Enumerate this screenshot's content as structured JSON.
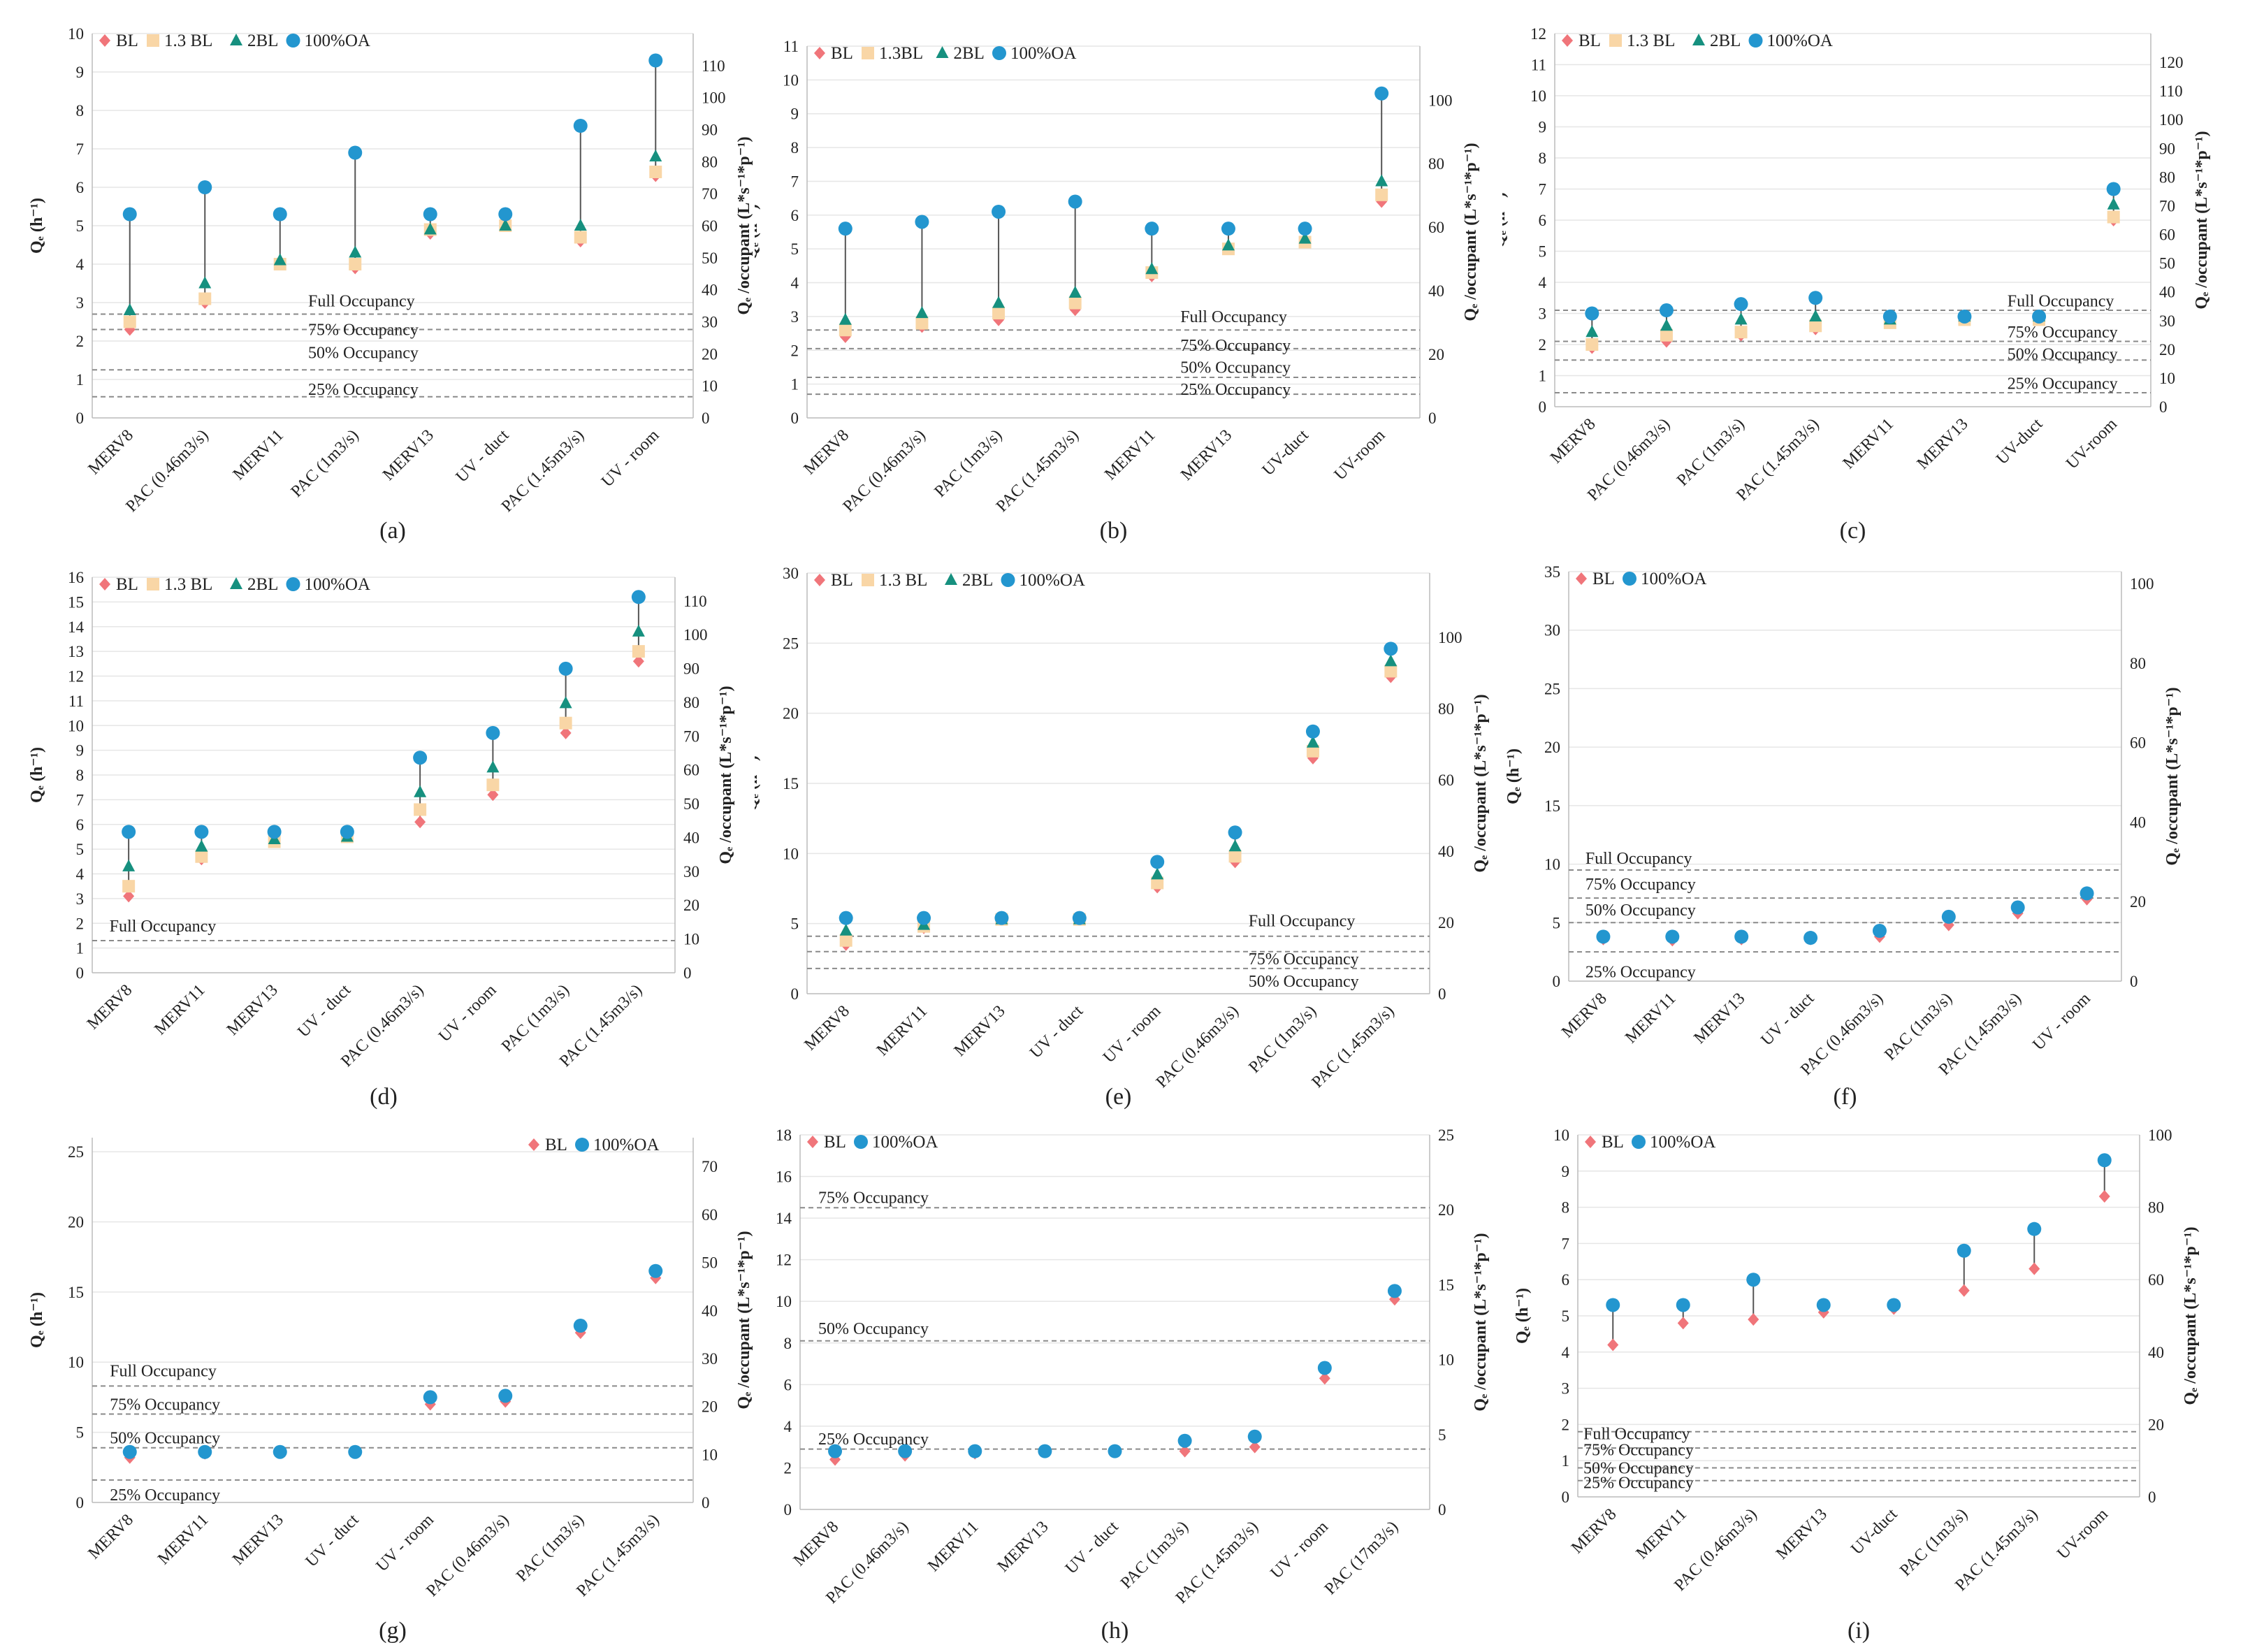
{
  "figure": {
    "legend_labels": {
      "BL": "BL",
      "1.3BL": "1.3 BL",
      "2BL": "2BL",
      "OA": "100%OA"
    },
    "colors": {
      "BL": "#f0757a",
      "1.3BL": "#f9d6a6",
      "2BL": "#16907f",
      "OA": "#2396cf",
      "dash": "#8a8a8a",
      "grid": "#e6e6e6",
      "stem": "#555555"
    }
  },
  "chart_data": [
    {
      "id": "a",
      "type": "scatter",
      "panel_label": "(a)",
      "ylabel": "Qₑ (h⁻¹)",
      "y2label": "Qₑ /occupant (L*s⁻¹*p⁻¹)",
      "ylim": [
        0,
        10
      ],
      "ystep": 1,
      "y2lim": [
        0,
        120
      ],
      "y2step": 10,
      "y2max_tick": 110,
      "legend_pos": "top-left",
      "series_keys": [
        "BL",
        "1.3BL",
        "2BL",
        "OA"
      ],
      "series_names": [
        "BL",
        "1.3 BL",
        "2BL",
        "100%OA"
      ],
      "categories": [
        "MERV8",
        "PAC (0.46m3/s)",
        "MERV11",
        "PAC (1m3/s)",
        "MERV13",
        "UV - duct",
        "PAC (1.45m3/s)",
        "UV - room"
      ],
      "series": {
        "BL": [
          2.3,
          3.0,
          4.0,
          3.9,
          4.8,
          5.0,
          4.6,
          6.3
        ],
        "1.3BL": [
          2.5,
          3.1,
          4.0,
          4.0,
          4.9,
          5.0,
          4.7,
          6.4
        ],
        "2BL": [
          2.8,
          3.5,
          4.1,
          4.3,
          4.9,
          5.0,
          5.0,
          6.8
        ],
        "OA": [
          5.3,
          6.0,
          5.3,
          6.9,
          5.3,
          5.3,
          7.6,
          9.3
        ]
      },
      "thresholds": [
        {
          "label": "Full Occupancy",
          "value": 2.7,
          "label_value": 3.05,
          "label_pos": 0.35
        },
        {
          "label": "75% Occupancy",
          "value": 2.3,
          "label_value": 2.3,
          "label_pos": 0.35
        },
        {
          "label": "50% Occupancy",
          "value": 1.25,
          "label_value": 1.7,
          "label_pos": 0.35
        },
        {
          "label": "25% Occupancy",
          "value": 0.55,
          "label_value": 0.75,
          "label_pos": 0.35
        }
      ]
    },
    {
      "id": "b",
      "type": "scatter",
      "panel_label": "(b)",
      "ylabel": "Qₑ (h⁻¹)",
      "y2label": "Qₑ /occupant (L*s⁻¹*p⁻¹)",
      "ylim": [
        0,
        11
      ],
      "ystep": 1,
      "y2lim": [
        0,
        117
      ],
      "y2step": 20,
      "y2max_tick": 100,
      "legend_pos": "top-left",
      "series_keys": [
        "BL",
        "1.3BL",
        "2BL",
        "OA"
      ],
      "series_names": [
        "BL",
        "1.3BL",
        "2BL",
        "100%OA"
      ],
      "categories": [
        "MERV8",
        "PAC (0.46m3/s)",
        "PAC (1m3/s)",
        "PAC (1.45m3/s)",
        "MERV11",
        "MERV13",
        "UV-duct",
        "UV-room"
      ],
      "series": {
        "BL": [
          2.4,
          2.7,
          2.9,
          3.2,
          4.2,
          5.0,
          5.2,
          6.4
        ],
        "1.3BL": [
          2.6,
          2.8,
          3.1,
          3.4,
          4.3,
          5.0,
          5.2,
          6.6
        ],
        "2BL": [
          2.9,
          3.1,
          3.4,
          3.7,
          4.4,
          5.1,
          5.3,
          7.0
        ],
        "OA": [
          5.6,
          5.8,
          6.1,
          6.4,
          5.6,
          5.6,
          5.6,
          9.6
        ]
      },
      "thresholds": [
        {
          "label": "Full Occupancy",
          "value": 2.6,
          "label_value": 3.0,
          "label_pos": 0.6
        },
        {
          "label": "75% Occupancy",
          "value": 2.05,
          "label_value": 2.15,
          "label_pos": 0.6
        },
        {
          "label": "50% Occupancy",
          "value": 1.2,
          "label_value": 1.5,
          "label_pos": 0.6
        },
        {
          "label": "25% Occupancy",
          "value": 0.7,
          "label_value": 0.85,
          "label_pos": 0.6
        }
      ]
    },
    {
      "id": "c",
      "type": "scatter",
      "panel_label": "(c)",
      "ylabel": "Qₑ (h⁻¹)",
      "y2label": "Qₑ /occupant (L*s⁻¹*p⁻¹)",
      "ylim": [
        0,
        12
      ],
      "ystep": 1,
      "y2lim": [
        0,
        130
      ],
      "y2step": 10,
      "y2max_tick": 120,
      "legend_pos": "top-left",
      "series_keys": [
        "BL",
        "1.3BL",
        "2BL",
        "OA"
      ],
      "series_names": [
        "BL",
        "1.3 BL",
        "2BL",
        "100%OA"
      ],
      "categories": [
        "MERV8",
        "PAC (0.46m3/s)",
        "PAC (1m3/s)",
        "PAC (1.45m3/s)",
        "MERV11",
        "MERV13",
        "UV-duct",
        "UV-room"
      ],
      "series": {
        "BL": [
          1.9,
          2.1,
          2.3,
          2.5,
          2.7,
          2.8,
          2.8,
          6.0
        ],
        "1.3BL": [
          2.0,
          2.3,
          2.4,
          2.6,
          2.7,
          2.8,
          2.8,
          6.1
        ],
        "2BL": [
          2.4,
          2.6,
          2.8,
          2.9,
          2.8,
          2.9,
          2.9,
          6.5
        ],
        "OA": [
          3.0,
          3.1,
          3.3,
          3.5,
          2.9,
          2.9,
          2.9,
          7.0
        ]
      },
      "thresholds": [
        {
          "label": "Full Occupancy",
          "value": 3.1,
          "label_value": 3.4,
          "label_pos": 0.75
        },
        {
          "label": "75% Occupancy",
          "value": 2.1,
          "label_value": 2.4,
          "label_pos": 0.75
        },
        {
          "label": "50% Occupancy",
          "value": 1.5,
          "label_value": 1.7,
          "label_pos": 0.75
        },
        {
          "label": "25% Occupancy",
          "value": 0.45,
          "label_value": 0.75,
          "label_pos": 0.75
        }
      ]
    },
    {
      "id": "d",
      "type": "scatter",
      "panel_label": "(d)",
      "ylabel": "Qₑ (h⁻¹)",
      "y2label": "Qₑ /occupant (L*s⁻¹*p⁻¹)",
      "ylim": [
        0,
        16
      ],
      "ystep": 1,
      "y2lim": [
        0,
        117
      ],
      "y2step": 10,
      "y2max_tick": 110,
      "legend_pos": "top-left",
      "series_keys": [
        "BL",
        "1.3BL",
        "2BL",
        "OA"
      ],
      "series_names": [
        "BL",
        "1.3 BL",
        "2BL",
        "100%OA"
      ],
      "categories": [
        "MERV8",
        "MERV11",
        "MERV13",
        "UV - duct",
        "PAC (0.46m3/s)",
        "UV - room",
        "PAC (1m3/s)",
        "PAC (1.45m3/s)"
      ],
      "series": {
        "BL": [
          3.1,
          4.6,
          5.3,
          5.5,
          6.1,
          7.2,
          9.7,
          12.6
        ],
        "1.3BL": [
          3.5,
          4.7,
          5.3,
          5.5,
          6.6,
          7.6,
          10.1,
          13.0
        ],
        "2BL": [
          4.3,
          5.1,
          5.4,
          5.5,
          7.3,
          8.3,
          10.9,
          13.8
        ],
        "OA": [
          5.7,
          5.7,
          5.7,
          5.7,
          8.7,
          9.7,
          12.3,
          15.2
        ]
      },
      "thresholds": [
        {
          "label": "Full Occupancy",
          "value": 1.3,
          "label_value": 1.9,
          "label_pos": 0.02
        }
      ]
    },
    {
      "id": "e",
      "type": "scatter",
      "panel_label": "(e)",
      "ylabel": "Qₑ (h⁻¹)",
      "y2label": "Qₑ /occupant (L*s⁻¹*p⁻¹)",
      "ylim": [
        0,
        30
      ],
      "ystep": 5,
      "y2lim": [
        0,
        118
      ],
      "y2step": 20,
      "y2max_tick": 100,
      "legend_pos": "top-left",
      "series_keys": [
        "BL",
        "1.3BL",
        "2BL",
        "OA"
      ],
      "series_names": [
        "BL",
        "1.3 BL",
        "2BL",
        "100%OA"
      ],
      "categories": [
        "MERV8",
        "MERV11",
        "MERV13",
        "UV - duct",
        "UV - room",
        "PAC (0.46m3/s)",
        "PAC (1m3/s)",
        "PAC (1.45m3/s)"
      ],
      "series": {
        "BL": [
          3.5,
          4.7,
          5.3,
          5.3,
          7.6,
          9.4,
          16.8,
          22.6
        ],
        "1.3BL": [
          3.8,
          4.8,
          5.3,
          5.3,
          7.9,
          9.8,
          17.3,
          23.0
        ],
        "2BL": [
          4.5,
          4.9,
          5.3,
          5.3,
          8.5,
          10.5,
          17.9,
          23.7
        ],
        "OA": [
          5.4,
          5.4,
          5.4,
          5.4,
          9.4,
          11.5,
          18.7,
          24.6
        ]
      },
      "thresholds": [
        {
          "label": "Full Occupancy",
          "value": 4.1,
          "label_value": 5.2,
          "label_pos": 0.7
        },
        {
          "label": "75% Occupancy",
          "value": 3.0,
          "label_value": 2.5,
          "label_pos": 0.7
        },
        {
          "label": "50% Occupancy",
          "value": 1.8,
          "label_value": 0.9,
          "label_pos": 0.7
        }
      ]
    },
    {
      "id": "f",
      "type": "scatter",
      "panel_label": "(f)",
      "ylabel": "Qₑ (h⁻¹)",
      "y2label": "Qₑ /occupant (L*s⁻¹*p⁻¹)",
      "ylim": [
        0,
        35
      ],
      "ystep": 5,
      "y2lim": [
        0,
        103
      ],
      "y2step": 20,
      "y2max_tick": 100,
      "legend_pos": "top-left",
      "series_keys": [
        "BL",
        "OA"
      ],
      "series_names": [
        "BL",
        "100%OA"
      ],
      "categories": [
        "MERV8",
        "MERV11",
        "MERV13",
        "UV - duct",
        "PAC (0.46m3/s)",
        "PAC (1m3/s)",
        "PAC (1.45m3/s)",
        "UV - room"
      ],
      "series": {
        "BL": [
          3.6,
          3.5,
          3.6,
          3.6,
          3.8,
          4.8,
          5.8,
          7.0
        ],
        "OA": [
          3.8,
          3.8,
          3.8,
          3.7,
          4.3,
          5.5,
          6.3,
          7.5
        ]
      },
      "thresholds": [
        {
          "label": "Full Occupancy",
          "value": 9.5,
          "label_value": 10.5,
          "label_pos": 0.02
        },
        {
          "label": "75% Occupancy",
          "value": 7.1,
          "label_value": 8.3,
          "label_pos": 0.02
        },
        {
          "label": "50% Occupancy",
          "value": 5.0,
          "label_value": 6.1,
          "label_pos": 0.02
        },
        {
          "label": "25% Occupancy",
          "value": 2.5,
          "label_value": 0.8,
          "label_pos": 0.02
        }
      ]
    },
    {
      "id": "g",
      "type": "scatter",
      "panel_label": "(g)",
      "ylabel": "Qₑ (h⁻¹)",
      "y2label": "Qₑ /occupant (L*s⁻¹*p⁻¹)",
      "ylim": [
        0,
        26
      ],
      "ystep": 5,
      "y2lim": [
        0,
        76
      ],
      "y2step": 10,
      "y2max_tick": 70,
      "legend_pos": "top-right",
      "series_keys": [
        "BL",
        "OA"
      ],
      "series_names": [
        "BL",
        "100%OA"
      ],
      "categories": [
        "MERV8",
        "MERV11",
        "MERV13",
        "UV - duct",
        "UV - room",
        "PAC (0.46m3/s)",
        "PAC (1m3/s)",
        "PAC (1.45m3/s)"
      ],
      "series": {
        "BL": [
          3.2,
          3.5,
          3.6,
          3.6,
          7.0,
          7.2,
          12.1,
          16.0
        ],
        "OA": [
          3.6,
          3.6,
          3.6,
          3.6,
          7.5,
          7.6,
          12.6,
          16.5
        ]
      },
      "thresholds": [
        {
          "label": "Full Occupancy",
          "value": 8.3,
          "label_value": 9.4,
          "label_pos": 0.02
        },
        {
          "label": "75% Occupancy",
          "value": 6.3,
          "label_value": 7.0,
          "label_pos": 0.02
        },
        {
          "label": "50% Occupancy",
          "value": 3.9,
          "label_value": 4.6,
          "label_pos": 0.02
        },
        {
          "label": "25% Occupancy",
          "value": 1.6,
          "label_value": 0.55,
          "label_pos": 0.02
        }
      ]
    },
    {
      "id": "h",
      "type": "scatter",
      "panel_label": "(h)",
      "ylabel": "Qₑ (h⁻¹)",
      "y2label": "Qₑ /occupant (L*s⁻¹*p⁻¹)",
      "ylim": [
        0,
        18
      ],
      "ystep": 2,
      "y2lim": [
        0,
        25
      ],
      "y2step": 5,
      "y2max_tick": 25,
      "legend_pos": "top-left",
      "series_keys": [
        "BL",
        "OA"
      ],
      "series_names": [
        "BL",
        "100%OA"
      ],
      "categories": [
        "MERV8",
        "PAC (0.46m3/s)",
        "MERV11",
        "MERV13",
        "UV - duct",
        "PAC (1m3/s)",
        "PAC (1.45m3/s)",
        "UV - room",
        "PAC (17m3/s)"
      ],
      "series": {
        "BL": [
          2.4,
          2.6,
          2.7,
          2.8,
          2.8,
          2.8,
          3.0,
          6.3,
          10.1
        ],
        "OA": [
          2.8,
          2.8,
          2.8,
          2.8,
          2.8,
          3.3,
          3.5,
          6.8,
          10.5
        ]
      },
      "thresholds": [
        {
          "label": "75% Occupancy",
          "value": 14.5,
          "label_value": 15.0,
          "label_pos": 0.02
        },
        {
          "label": "50% Occupancy",
          "value": 8.1,
          "label_value": 8.7,
          "label_pos": 0.02
        },
        {
          "label": "25% Occupancy",
          "value": 2.9,
          "label_value": 3.4,
          "label_pos": 0.02
        }
      ]
    },
    {
      "id": "i",
      "type": "scatter",
      "panel_label": "(i)",
      "ylabel": "Qₑ (h⁻¹)",
      "y2label": "Qₑ /occupant (L*s⁻¹*p⁻¹)",
      "ylim": [
        0,
        10
      ],
      "ystep": 1,
      "y2lim": [
        0,
        100
      ],
      "y2step": 20,
      "y2max_tick": 100,
      "legend_pos": "top-left",
      "series_keys": [
        "BL",
        "OA"
      ],
      "series_names": [
        "BL",
        "100%OA"
      ],
      "categories": [
        "MERV8",
        "MERV11",
        "PAC (0.46m3/s)",
        "MERV13",
        "UV-duct",
        "PAC (1m3/s)",
        "PAC (1.45m3/s)",
        "UV-room"
      ],
      "series": {
        "BL": [
          4.2,
          4.8,
          4.9,
          5.1,
          5.2,
          5.7,
          6.3,
          8.3
        ],
        "OA": [
          5.3,
          5.3,
          6.0,
          5.3,
          5.3,
          6.8,
          7.4,
          9.3
        ]
      },
      "thresholds": [
        {
          "label": "Full Occupancy",
          "value": 1.8,
          "label_value": 1.75,
          "label_pos": 0.0
        },
        {
          "label": "75% Occupancy",
          "value": 1.35,
          "label_value": 1.3,
          "label_pos": 0.0
        },
        {
          "label": "50% Occupancy",
          "value": 0.8,
          "label_value": 0.8,
          "label_pos": 0.0
        },
        {
          "label": "25% Occupancy",
          "value": 0.45,
          "label_value": 0.4,
          "label_pos": 0.0
        }
      ]
    }
  ]
}
